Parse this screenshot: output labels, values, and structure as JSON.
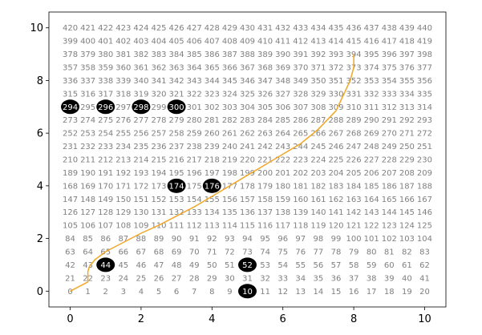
{
  "chart_data": {
    "type": "scatter",
    "title": "",
    "xlabel": "",
    "ylabel": "",
    "xlim": [
      -0.6,
      10.6
    ],
    "ylim": [
      -0.6,
      10.6
    ],
    "x_ticks": [
      0,
      2,
      4,
      6,
      8,
      10
    ],
    "y_ticks": [
      0,
      2,
      4,
      6,
      8,
      10
    ],
    "grid": false,
    "grid_labels": {
      "columns": 21,
      "rows": 21,
      "x_step": 0.5,
      "y_step": 0.5,
      "first_index": 0,
      "label_color": "#7f7f7f"
    },
    "highlighted_cells": [
      10,
      44,
      52,
      174,
      176,
      294,
      296,
      298,
      300
    ],
    "highlight_color": "#000000",
    "path": {
      "color": "#f2a726",
      "points": [
        [
          0,
          0
        ],
        [
          0.5,
          0.35
        ],
        [
          0.5,
          0.75
        ],
        [
          0.55,
          0.95
        ],
        [
          0.7,
          1.2
        ],
        [
          1.0,
          1.5
        ],
        [
          1.5,
          1.85
        ],
        [
          2.0,
          2.2
        ],
        [
          2.5,
          2.5
        ],
        [
          3.0,
          2.85
        ],
        [
          3.5,
          3.2
        ],
        [
          4.0,
          3.6
        ],
        [
          4.5,
          4.0
        ],
        [
          5.0,
          4.4
        ],
        [
          5.5,
          4.8
        ],
        [
          6.0,
          5.2
        ],
        [
          6.5,
          5.6
        ],
        [
          7.0,
          6.15
        ],
        [
          7.5,
          6.85
        ],
        [
          7.9,
          8.0
        ],
        [
          8.0,
          8.5
        ],
        [
          8.0,
          9.0
        ]
      ]
    }
  }
}
